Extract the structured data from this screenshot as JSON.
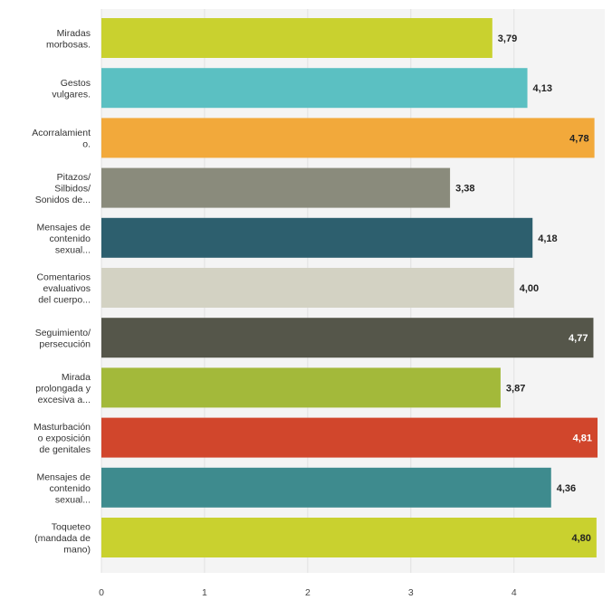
{
  "chart_data": {
    "type": "bar",
    "orientation": "horizontal",
    "categories": [
      [
        "Miradas",
        "morbosas."
      ],
      [
        "Gestos",
        "vulgares."
      ],
      [
        "Acorralamient",
        "o."
      ],
      [
        "Pitazos/",
        "Silbidos/",
        "Sonidos de..."
      ],
      [
        "Mensajes de",
        "contenido",
        "sexual..."
      ],
      [
        "Comentarios",
        "evaluativos",
        "del cuerpo..."
      ],
      [
        "Seguimiento/",
        "persecución"
      ],
      [
        "Mirada",
        "prolongada y",
        "excesiva a..."
      ],
      [
        "Masturbación",
        "o exposición",
        "de genitales"
      ],
      [
        "Mensajes de",
        "contenido",
        "sexual..."
      ],
      [
        "Toqueteo",
        "(mandada de",
        "mano)"
      ]
    ],
    "values": [
      3.79,
      4.13,
      4.78,
      3.38,
      4.18,
      4.0,
      4.77,
      3.87,
      4.81,
      4.36,
      4.8
    ],
    "value_labels": [
      "3,79",
      "4,13",
      "4,78",
      "3,38",
      "4,18",
      "4,00",
      "4,77",
      "3,87",
      "4,81",
      "4,36",
      "4,80"
    ],
    "colors": [
      "#c9d12f",
      "#5bc0c2",
      "#f2a93b",
      "#8a8b7c",
      "#2d5f6e",
      "#d3d2c3",
      "#55564a",
      "#a3b93a",
      "#d1462c",
      "#3e8b8e",
      "#c9d12f"
    ],
    "label_inside": [
      false,
      false,
      true,
      false,
      false,
      false,
      true,
      false,
      true,
      false,
      true
    ],
    "label_colors": [
      "#222222",
      "#222222",
      "#222222",
      "#222222",
      "#222222",
      "#222222",
      "#ffffff",
      "#222222",
      "#ffffff",
      "#222222",
      "#222222"
    ],
    "xticks": [
      0,
      1,
      2,
      3,
      4
    ],
    "xtick_labels": [
      "0",
      "1",
      "2",
      "3",
      "4"
    ],
    "xlim": [
      0,
      4.88
    ],
    "grid": true
  }
}
